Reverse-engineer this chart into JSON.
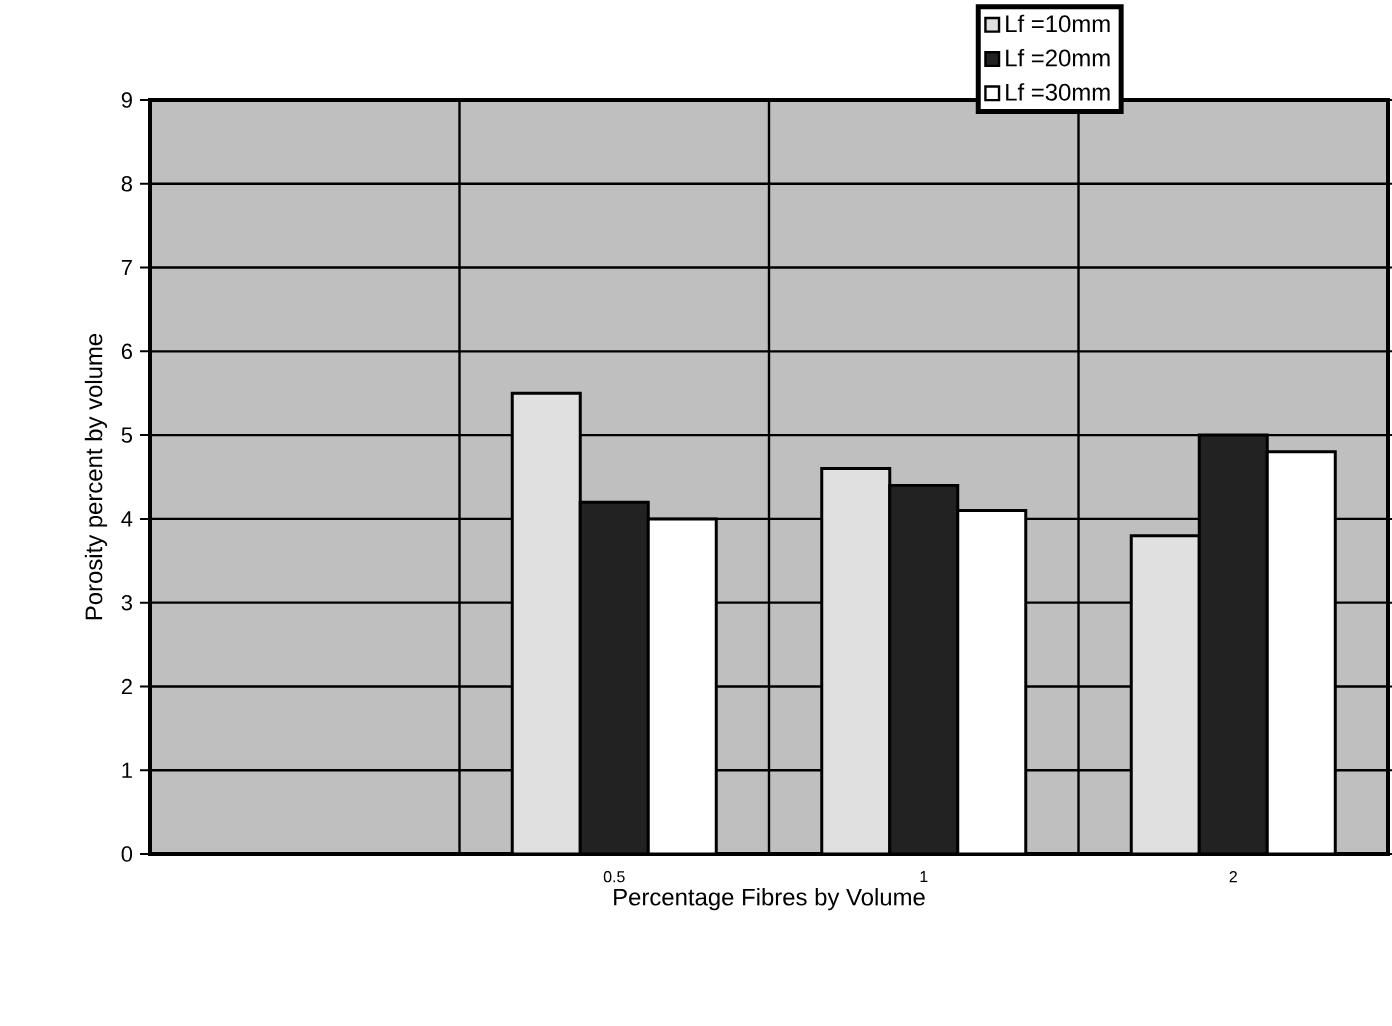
{
  "chart_data": {
    "type": "bar",
    "xlabel": "Percentage Fibres by Volume",
    "ylabel": "Porosity percent by volume",
    "categories": [
      null,
      "0.5",
      "1",
      "2"
    ],
    "series": [
      {
        "name": "Lf =10mm",
        "color": "#e0e0e0",
        "values": [
          null,
          5.5,
          4.6,
          3.8
        ]
      },
      {
        "name": "Lf =20mm",
        "color": "#222222",
        "values": [
          null,
          4.2,
          4.4,
          5.0
        ]
      },
      {
        "name": "Lf =30mm",
        "color": "#ffffff",
        "values": [
          null,
          4.0,
          4.1,
          4.8
        ]
      }
    ],
    "ylim": [
      0,
      9
    ],
    "yticks": [
      0,
      1,
      2,
      3,
      4,
      5,
      6,
      7,
      8,
      9
    ],
    "grid": true,
    "legend": "top right"
  }
}
